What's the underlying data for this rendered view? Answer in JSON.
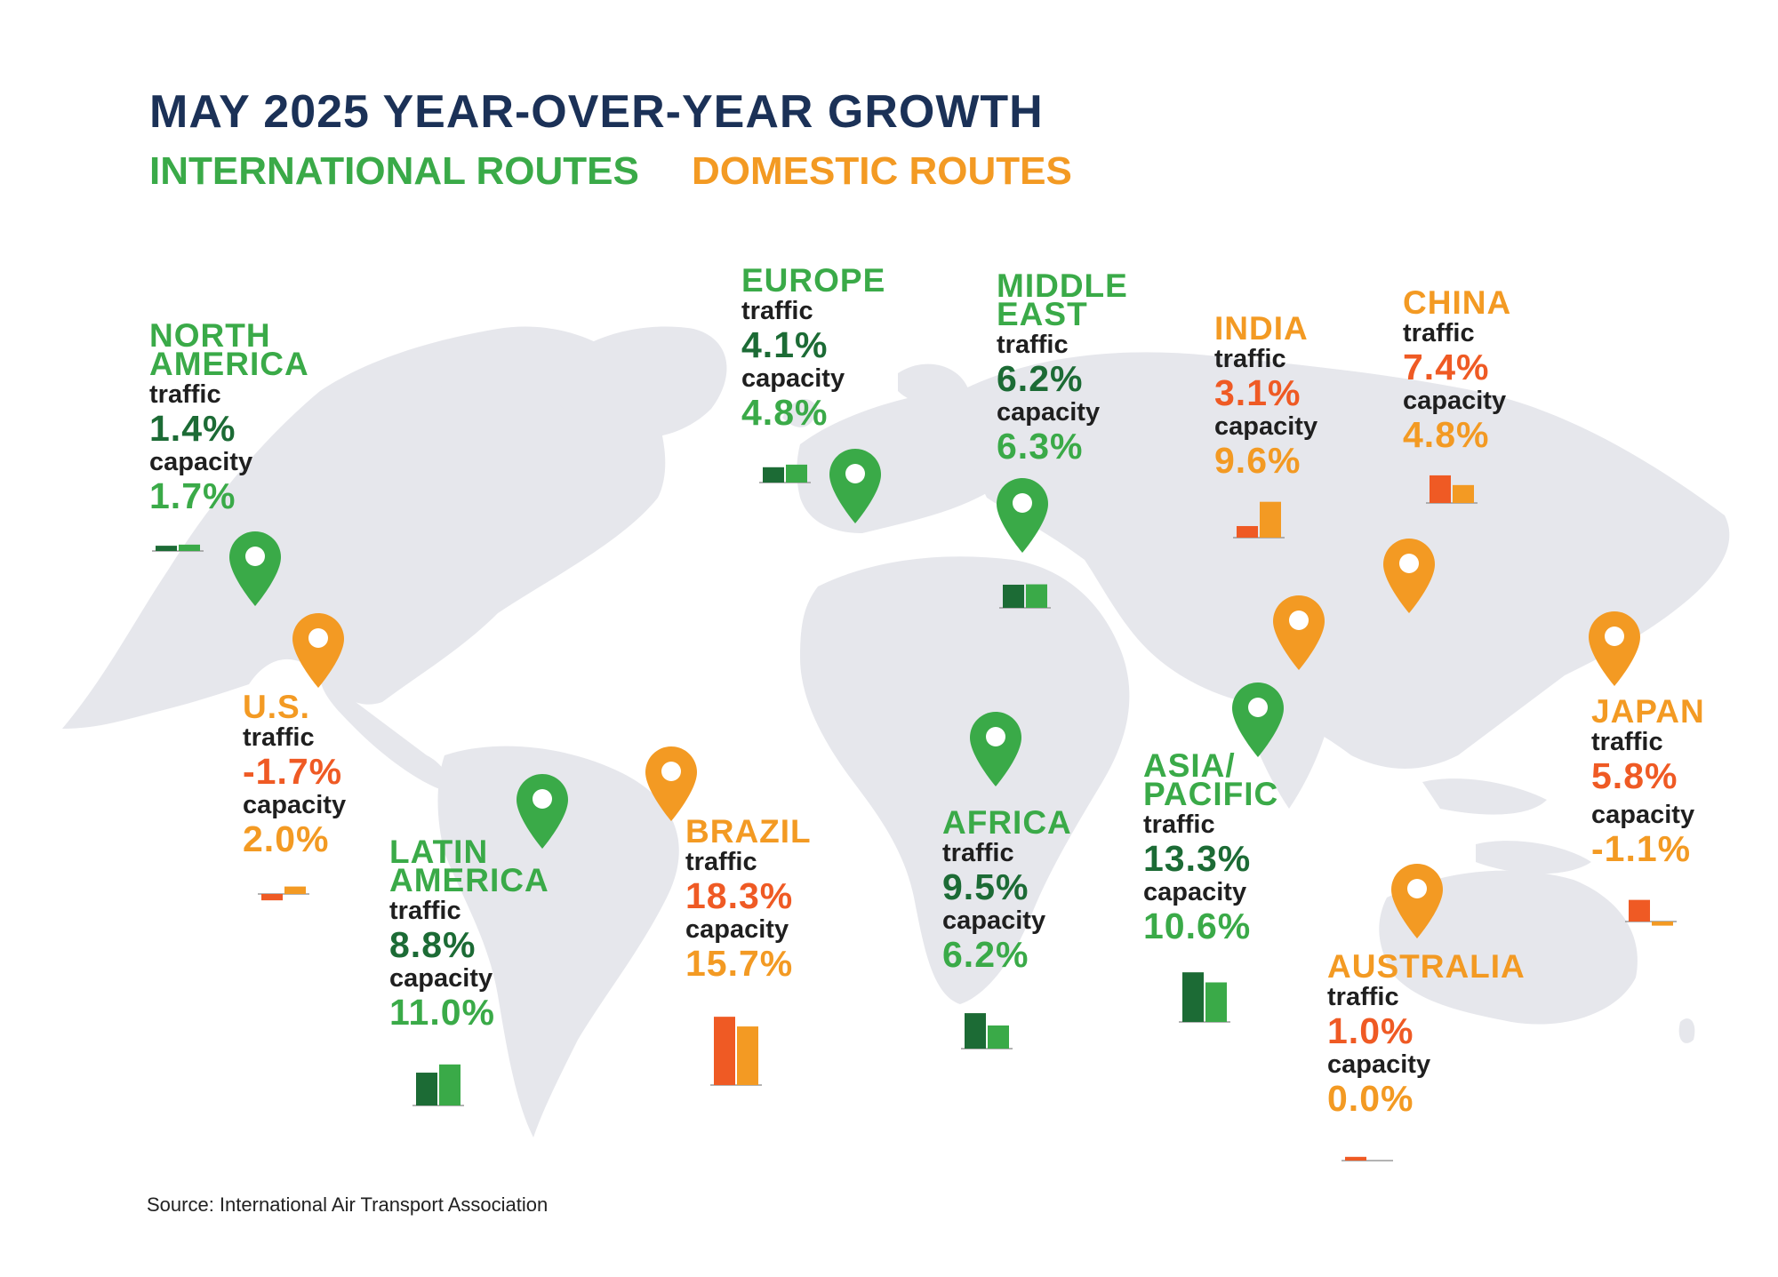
{
  "title": "MAY 2025 YEAR-OVER-YEAR GROWTH",
  "legend": {
    "international": "INTERNATIONAL ROUTES",
    "domestic": "DOMESTIC ROUTES"
  },
  "source": "Source: International Air Transport Association",
  "labels": {
    "traffic": "traffic",
    "capacity": "capacity"
  },
  "colors": {
    "title": "#1b3157",
    "international_name": "#3aaa48",
    "international_traffic": "#1c6b35",
    "international_capacity": "#3aaa48",
    "domestic_name": "#f39a23",
    "domestic_traffic": "#ef5a24",
    "domestic_capacity": "#f39a23",
    "map": "#e6e7ec"
  },
  "icons": {
    "marker": "map-pin-icon"
  },
  "chart_data": {
    "type": "bar",
    "title": "MAY 2025 YEAR-OVER-YEAR GROWTH",
    "unit": "%",
    "groups": [
      {
        "name": "NORTH AMERICA",
        "type": "international",
        "traffic": "1.4%",
        "capacity": "1.7%",
        "values": [
          1.4,
          1.7
        ]
      },
      {
        "name": "EUROPE",
        "type": "international",
        "traffic": "4.1%",
        "capacity": "4.8%",
        "values": [
          4.1,
          4.8
        ]
      },
      {
        "name": "MIDDLE EAST",
        "type": "international",
        "traffic": "6.2%",
        "capacity": "6.3%",
        "values": [
          6.2,
          6.3
        ]
      },
      {
        "name": "INDIA",
        "type": "domestic",
        "traffic": "3.1%",
        "capacity": "9.6%",
        "values": [
          3.1,
          9.6
        ]
      },
      {
        "name": "CHINA",
        "type": "domestic",
        "traffic": "7.4%",
        "capacity": "4.8%",
        "values": [
          7.4,
          4.8
        ]
      },
      {
        "name": "U.S.",
        "type": "domestic",
        "traffic": "-1.7%",
        "capacity": "2.0%",
        "values": [
          -1.7,
          2.0
        ]
      },
      {
        "name": "LATIN AMERICA",
        "type": "international",
        "traffic": "8.8%",
        "capacity": "11.0%",
        "values": [
          8.8,
          11.0
        ]
      },
      {
        "name": "BRAZIL",
        "type": "domestic",
        "traffic": "18.3%",
        "capacity": "15.7%",
        "values": [
          18.3,
          15.7
        ]
      },
      {
        "name": "AFRICA",
        "type": "international",
        "traffic": "9.5%",
        "capacity": "6.2%",
        "values": [
          9.5,
          6.2
        ]
      },
      {
        "name": "ASIA/ PACIFIC",
        "type": "international",
        "traffic": "13.3%",
        "capacity": "10.6%",
        "values": [
          13.3,
          10.6
        ]
      },
      {
        "name": "JAPAN",
        "type": "domestic",
        "traffic": "5.8%",
        "capacity": "-1.1%",
        "values": [
          5.8,
          -1.1
        ]
      },
      {
        "name": "AUSTRALIA",
        "type": "domestic",
        "traffic": "1.0%",
        "capacity": "0.0%",
        "values": [
          1.0,
          0.0
        ]
      }
    ]
  }
}
